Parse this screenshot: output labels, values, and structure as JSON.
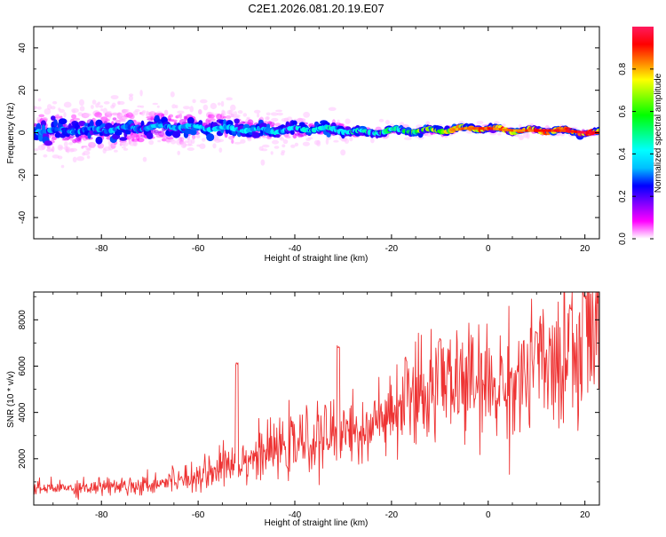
{
  "title": "C2E1.2026.081.20.19.E07",
  "colors": {
    "snr_line": "#ee3333",
    "ridge_low": "#7b00ff",
    "ridge_mid": "#00ffcc",
    "ridge_high": "#ff1a5e"
  },
  "chart_data": [
    {
      "type": "heatmap",
      "title": "C2E1.2026.081.20.19.E07",
      "xlabel": "Height of straight line (km)",
      "ylabel": "Frequency (Hz)",
      "xlim": [
        -94,
        23
      ],
      "ylim": [
        -50,
        50
      ],
      "x_ticks": [
        -80,
        -60,
        -40,
        -20,
        0,
        20
      ],
      "y_ticks": [
        -40,
        -20,
        0,
        20,
        40
      ],
      "x_tick_labels": [
        "-80",
        "-60",
        "-40",
        "-20",
        "0",
        "20"
      ],
      "y_tick_labels": [
        "-40",
        "-20",
        "0",
        "20",
        "40"
      ],
      "colorbar": {
        "label": "Normalized spectral amplitude",
        "range": [
          0,
          1
        ],
        "ticks": [
          0.0,
          0.2,
          0.4,
          0.6,
          0.8
        ],
        "tick_labels": [
          "0.0",
          "0.2",
          "0.4",
          "0.6",
          "0.8"
        ],
        "colors": [
          "#ffffff",
          "#ff00ff",
          "#8000ff",
          "#0000ff",
          "#00bfff",
          "#00ffff",
          "#00ff80",
          "#00ff00",
          "#80ff00",
          "#ffff00",
          "#ff8000",
          "#ff0000",
          "#ff1a5e"
        ]
      },
      "ridge": {
        "x": [
          -94,
          -85,
          -75,
          -65,
          -55,
          -45,
          -35,
          -25,
          -20,
          -15,
          -10,
          -5,
          0,
          5,
          10,
          15,
          20,
          23
        ],
        "center_freq": [
          1,
          1,
          2,
          3,
          2,
          1,
          2,
          0,
          1,
          1,
          1,
          2,
          2,
          1,
          1,
          1,
          0,
          0
        ],
        "amplitude": [
          0.3,
          0.32,
          0.33,
          0.35,
          0.36,
          0.38,
          0.42,
          0.45,
          0.5,
          0.6,
          0.7,
          0.8,
          0.82,
          0.8,
          0.85,
          0.85,
          0.9,
          0.9
        ],
        "spread_hz": [
          12,
          12,
          11,
          11,
          10,
          8,
          7,
          4,
          3,
          3,
          3,
          3,
          2,
          2,
          2,
          2,
          2,
          2
        ]
      }
    },
    {
      "type": "line",
      "xlabel": "Height of straight line (km)",
      "ylabel": "SNR (10 * v/v)",
      "xlim": [
        -94,
        23
      ],
      "ylim": [
        0,
        9200
      ],
      "x_ticks": [
        -80,
        -60,
        -40,
        -20,
        0,
        20
      ],
      "y_ticks": [
        2000,
        4000,
        6000,
        8000
      ],
      "x_tick_labels": [
        "-80",
        "-60",
        "-40",
        "-20",
        "0",
        "20"
      ],
      "y_tick_labels": [
        "2000",
        "4000",
        "6000",
        "8000"
      ],
      "trend": {
        "x": [
          -94,
          -80,
          -70,
          -60,
          -50,
          -40,
          -30,
          -20,
          -15,
          -10,
          -5,
          0,
          5,
          10,
          15,
          20,
          23
        ],
        "y": [
          700,
          800,
          900,
          1300,
          2000,
          2600,
          3100,
          3700,
          4300,
          5100,
          5300,
          5000,
          5300,
          5700,
          6100,
          7500,
          7800
        ]
      },
      "peaks": [
        {
          "x": -52,
          "y": 6200
        },
        {
          "x": -31,
          "y": 6900
        },
        {
          "x": -17,
          "y": 6400
        },
        {
          "x": -10,
          "y": 7200
        },
        {
          "x": 10,
          "y": 7600
        },
        {
          "x": 17,
          "y": 8600
        },
        {
          "x": 20,
          "y": 9100
        }
      ]
    }
  ]
}
